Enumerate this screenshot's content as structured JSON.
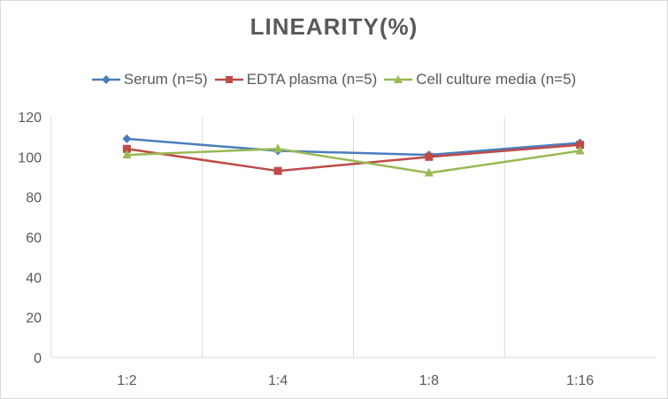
{
  "chart_data": {
    "type": "line",
    "title": "LINEARITY(%)",
    "categories": [
      "1:2",
      "1:4",
      "1:8",
      "1:16"
    ],
    "ylim": [
      0,
      120
    ],
    "yticks": [
      0,
      20,
      40,
      60,
      80,
      100,
      120
    ],
    "grid": "vertical",
    "legend_placement": "top",
    "series": [
      {
        "name": "Serum (n=5)",
        "values": [
          109,
          103,
          101,
          107
        ],
        "color": "#4a7ebb",
        "marker": "diamond"
      },
      {
        "name": "EDTA plasma (n=5)",
        "values": [
          104,
          93,
          100,
          106
        ],
        "color": "#be4b48",
        "marker": "square"
      },
      {
        "name": "Cell culture media (n=5)",
        "values": [
          101,
          104,
          92,
          103
        ],
        "color": "#98b954",
        "marker": "triangle"
      }
    ]
  }
}
